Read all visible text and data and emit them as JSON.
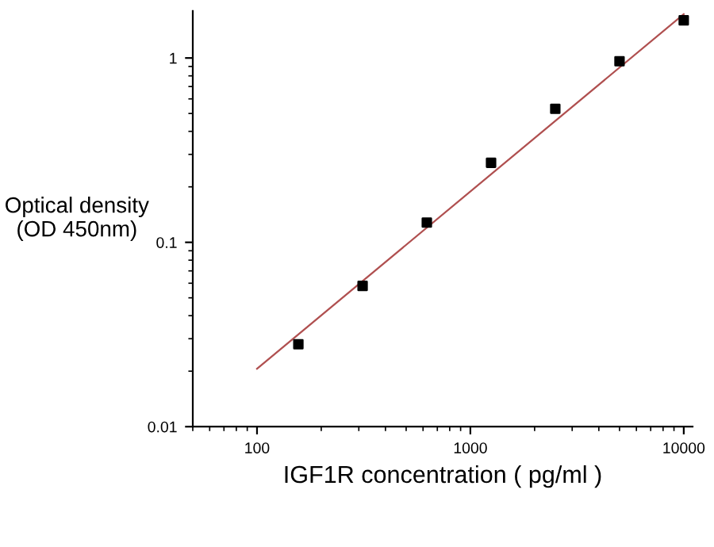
{
  "chart_data": {
    "type": "scatter",
    "xlabel": "IGF1R concentration ( pg/ml )",
    "ylabel": "Optical density\n(OD 450nm)",
    "log": "xy",
    "grid": false,
    "legend": false,
    "xlim": [
      50,
      11000
    ],
    "xticks": [
      100,
      1000,
      10000
    ],
    "ylim": [
      0.01,
      1.8
    ],
    "yticks": [
      0.01,
      0.1,
      1
    ],
    "series": [
      {
        "marker": "square",
        "color": "#000000",
        "x": [
          156.25,
          312.5,
          625,
          1250,
          2500,
          5000,
          10000
        ],
        "values": [
          0.028,
          0.058,
          0.128,
          0.27,
          0.53,
          0.96,
          1.6
        ]
      },
      {
        "type": "line",
        "color": "#b05050",
        "x": [
          100,
          10000
        ],
        "values": [
          0.0206,
          1.73
        ]
      }
    ]
  }
}
